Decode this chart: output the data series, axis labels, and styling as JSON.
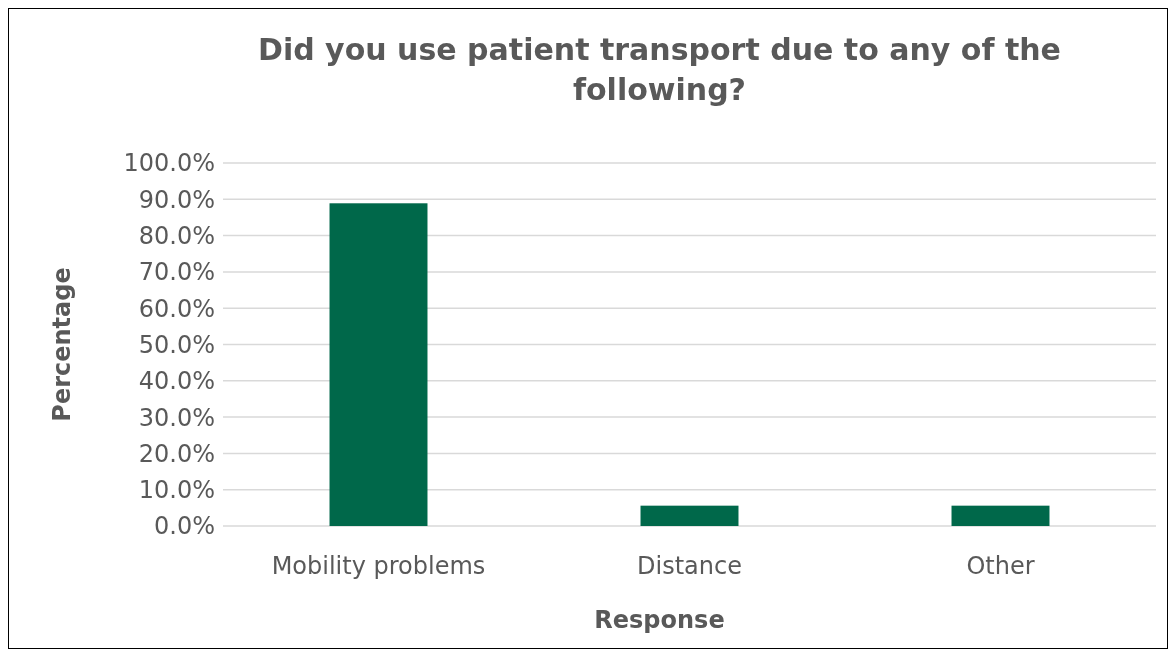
{
  "chart_data": {
    "type": "bar",
    "title": "Did you use patient transport due to any of the following?",
    "xlabel": "Response",
    "ylabel": "Percentage",
    "categories": [
      "Mobility problems",
      "Distance",
      "Other"
    ],
    "values": [
      88.9,
      5.6,
      5.6
    ],
    "color": "#00684a",
    "ylim": [
      0,
      100
    ],
    "yticks": [
      {
        "value": 0,
        "label": "0.0%"
      },
      {
        "value": 10,
        "label": "10.0%"
      },
      {
        "value": 20,
        "label": "20.0%"
      },
      {
        "value": 30,
        "label": "30.0%"
      },
      {
        "value": 40,
        "label": "40.0%"
      },
      {
        "value": 50,
        "label": "50.0%"
      },
      {
        "value": 60,
        "label": "60.0%"
      },
      {
        "value": 70,
        "label": "70.0%"
      },
      {
        "value": 80,
        "label": "80.0%"
      },
      {
        "value": 90,
        "label": "90.0%"
      },
      {
        "value": 100,
        "label": "100.0%"
      }
    ],
    "grid": "y"
  }
}
